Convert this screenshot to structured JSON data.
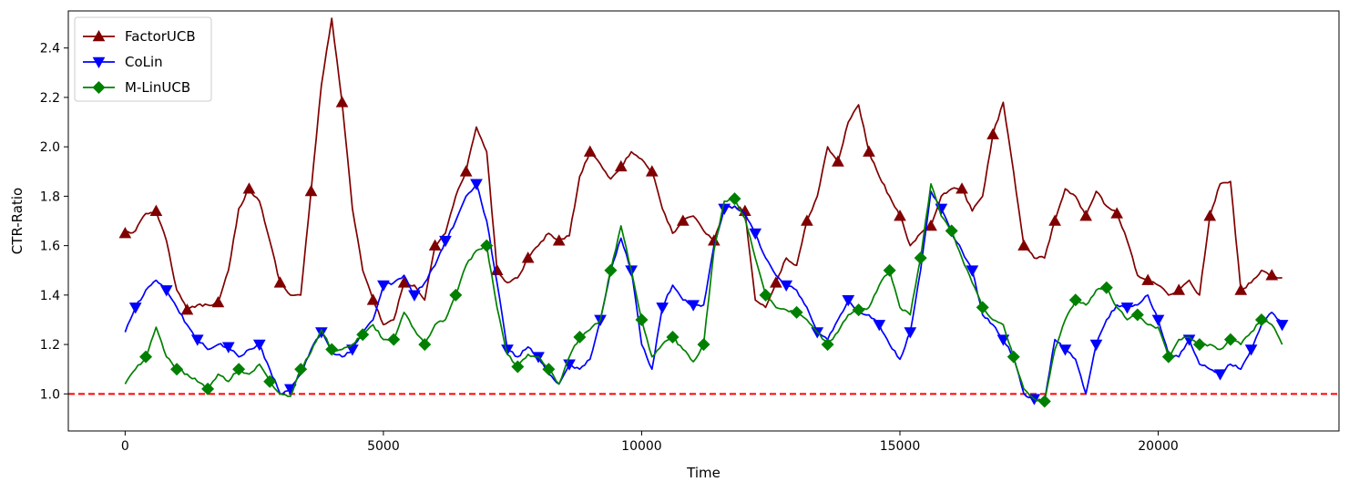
{
  "chart_data": {
    "type": "line",
    "xlabel": "Time",
    "ylabel": "CTR-Ratio",
    "xlim": [
      -1100,
      23500
    ],
    "ylim": [
      0.85,
      2.55
    ],
    "x_ticks": [
      0,
      5000,
      10000,
      15000,
      20000
    ],
    "y_ticks": [
      1.0,
      1.2,
      1.4,
      1.6,
      1.8,
      2.0,
      2.2,
      2.4
    ],
    "x_tick_labels": [
      "0",
      "5000",
      "10000",
      "15000",
      "20000"
    ],
    "y_tick_labels": [
      "1.0",
      "1.2",
      "1.4",
      "1.6",
      "1.8",
      "2.0",
      "2.2",
      "2.4"
    ],
    "legend_position": "top-left",
    "reference_line": {
      "y": 1.0,
      "color": "#ff0000",
      "style": "dashed"
    },
    "series": [
      {
        "name": "FactorUCB",
        "color": "#800000",
        "marker": "triangle-up",
        "x": [
          0,
          200,
          400,
          600,
          800,
          1000,
          1200,
          1400,
          1600,
          1800,
          2000,
          2200,
          2400,
          2600,
          2800,
          3000,
          3200,
          3400,
          3600,
          3800,
          4000,
          4200,
          4400,
          4600,
          4800,
          5000,
          5200,
          5400,
          5600,
          5800,
          6000,
          6200,
          6400,
          6600,
          6800,
          7000,
          7200,
          7400,
          7600,
          7800,
          8000,
          8200,
          8400,
          8600,
          8800,
          9000,
          9200,
          9400,
          9600,
          9800,
          10000,
          10200,
          10400,
          10600,
          10800,
          11000,
          11200,
          11400,
          11600,
          11800,
          12000,
          12200,
          12400,
          12600,
          12800,
          13000,
          13200,
          13400,
          13600,
          13800,
          14000,
          14200,
          14400,
          14600,
          14800,
          15000,
          15200,
          15400,
          15600,
          15800,
          16000,
          16200,
          16400,
          16600,
          16800,
          17000,
          17200,
          17400,
          17600,
          17800,
          18000,
          18200,
          18400,
          18600,
          18800,
          19000,
          19200,
          19400,
          19600,
          19800,
          20000,
          20200,
          20400,
          20600,
          20800,
          21000,
          21200,
          21400,
          21600,
          21800,
          22000,
          22200,
          22400
        ],
        "values": [
          1.65,
          1.66,
          1.73,
          1.74,
          1.62,
          1.42,
          1.34,
          1.36,
          1.36,
          1.37,
          1.5,
          1.75,
          1.83,
          1.78,
          1.62,
          1.45,
          1.4,
          1.4,
          1.82,
          2.25,
          2.52,
          2.18,
          1.75,
          1.5,
          1.38,
          1.28,
          1.3,
          1.45,
          1.44,
          1.38,
          1.6,
          1.65,
          1.8,
          1.9,
          2.08,
          1.98,
          1.5,
          1.45,
          1.47,
          1.55,
          1.6,
          1.65,
          1.62,
          1.64,
          1.88,
          1.98,
          1.93,
          1.87,
          1.92,
          1.98,
          1.95,
          1.9,
          1.75,
          1.65,
          1.7,
          1.72,
          1.66,
          1.62,
          1.75,
          1.76,
          1.74,
          1.38,
          1.35,
          1.45,
          1.55,
          1.52,
          1.7,
          1.8,
          2.0,
          1.94,
          2.1,
          2.17,
          1.98,
          1.88,
          1.8,
          1.72,
          1.6,
          1.65,
          1.68,
          1.8,
          1.83,
          1.83,
          1.74,
          1.8,
          2.05,
          2.18,
          1.9,
          1.6,
          1.55,
          1.55,
          1.7,
          1.83,
          1.8,
          1.72,
          1.82,
          1.76,
          1.73,
          1.62,
          1.48,
          1.46,
          1.44,
          1.4,
          1.42,
          1.46,
          1.4,
          1.72,
          1.85,
          1.86,
          1.42,
          1.45,
          1.5,
          1.48,
          1.47
        ]
      },
      {
        "name": "CoLin",
        "color": "#0000ff",
        "marker": "triangle-down",
        "x": [
          0,
          200,
          400,
          600,
          800,
          1000,
          1200,
          1400,
          1600,
          1800,
          2000,
          2200,
          2400,
          2600,
          2800,
          3000,
          3200,
          3400,
          3600,
          3800,
          4000,
          4200,
          4400,
          4600,
          4800,
          5000,
          5200,
          5400,
          5600,
          5800,
          6000,
          6200,
          6400,
          6600,
          6800,
          7000,
          7200,
          7400,
          7600,
          7800,
          8000,
          8200,
          8400,
          8600,
          8800,
          9000,
          9200,
          9400,
          9600,
          9800,
          10000,
          10200,
          10400,
          10600,
          10800,
          11000,
          11200,
          11400,
          11600,
          11800,
          12000,
          12200,
          12400,
          12600,
          12800,
          13000,
          13200,
          13400,
          13600,
          13800,
          14000,
          14200,
          14400,
          14600,
          14800,
          15000,
          15200,
          15400,
          15600,
          15800,
          16000,
          16200,
          16400,
          16600,
          16800,
          17000,
          17200,
          17400,
          17600,
          17800,
          18000,
          18200,
          18400,
          18600,
          18800,
          19000,
          19200,
          19400,
          19600,
          19800,
          20000,
          20200,
          20400,
          20600,
          20800,
          21000,
          21200,
          21400,
          21600,
          21800,
          22000,
          22200,
          22400
        ],
        "values": [
          1.25,
          1.35,
          1.42,
          1.46,
          1.42,
          1.35,
          1.28,
          1.22,
          1.18,
          1.2,
          1.19,
          1.15,
          1.18,
          1.2,
          1.1,
          1.0,
          1.02,
          1.08,
          1.18,
          1.25,
          1.17,
          1.15,
          1.18,
          1.25,
          1.3,
          1.44,
          1.45,
          1.48,
          1.4,
          1.45,
          1.52,
          1.62,
          1.7,
          1.8,
          1.85,
          1.7,
          1.45,
          1.18,
          1.15,
          1.19,
          1.15,
          1.08,
          1.04,
          1.12,
          1.1,
          1.14,
          1.3,
          1.5,
          1.63,
          1.5,
          1.2,
          1.1,
          1.35,
          1.44,
          1.38,
          1.36,
          1.36,
          1.6,
          1.75,
          1.76,
          1.73,
          1.65,
          1.55,
          1.48,
          1.44,
          1.42,
          1.35,
          1.25,
          1.22,
          1.3,
          1.38,
          1.33,
          1.32,
          1.28,
          1.2,
          1.14,
          1.25,
          1.5,
          1.82,
          1.75,
          1.65,
          1.58,
          1.5,
          1.32,
          1.28,
          1.22,
          1.15,
          1.0,
          0.98,
          0.97,
          1.22,
          1.18,
          1.14,
          1.0,
          1.2,
          1.3,
          1.36,
          1.35,
          1.36,
          1.4,
          1.3,
          1.16,
          1.15,
          1.22,
          1.12,
          1.1,
          1.08,
          1.12,
          1.1,
          1.18,
          1.28,
          1.33,
          1.28
        ]
      },
      {
        "name": "M-LinUCB",
        "color": "#008000",
        "marker": "diamond",
        "x": [
          0,
          200,
          400,
          600,
          800,
          1000,
          1200,
          1400,
          1600,
          1800,
          2000,
          2200,
          2400,
          2600,
          2800,
          3000,
          3200,
          3400,
          3600,
          3800,
          4000,
          4200,
          4400,
          4600,
          4800,
          5000,
          5200,
          5400,
          5600,
          5800,
          6000,
          6200,
          6400,
          6600,
          6800,
          7000,
          7200,
          7400,
          7600,
          7800,
          8000,
          8200,
          8400,
          8600,
          8800,
          9000,
          9200,
          9400,
          9600,
          9800,
          10000,
          10200,
          10400,
          10600,
          10800,
          11000,
          11200,
          11400,
          11600,
          11800,
          12000,
          12200,
          12400,
          12600,
          12800,
          13000,
          13200,
          13400,
          13600,
          13800,
          14000,
          14200,
          14400,
          14600,
          14800,
          15000,
          15200,
          15400,
          15600,
          15800,
          16000,
          16200,
          16400,
          16600,
          16800,
          17000,
          17200,
          17400,
          17600,
          17800,
          18000,
          18200,
          18400,
          18600,
          18800,
          19000,
          19200,
          19400,
          19600,
          19800,
          20000,
          20200,
          20400,
          20600,
          20800,
          21000,
          21200,
          21400,
          21600,
          21800,
          22000,
          22200,
          22400
        ],
        "values": [
          1.04,
          1.1,
          1.15,
          1.27,
          1.15,
          1.1,
          1.08,
          1.05,
          1.02,
          1.08,
          1.05,
          1.1,
          1.08,
          1.12,
          1.05,
          1.0,
          0.99,
          1.1,
          1.17,
          1.26,
          1.18,
          1.18,
          1.2,
          1.24,
          1.28,
          1.22,
          1.22,
          1.33,
          1.26,
          1.2,
          1.28,
          1.3,
          1.4,
          1.52,
          1.58,
          1.6,
          1.35,
          1.16,
          1.11,
          1.16,
          1.15,
          1.1,
          1.04,
          1.15,
          1.23,
          1.26,
          1.3,
          1.5,
          1.68,
          1.5,
          1.3,
          1.15,
          1.2,
          1.23,
          1.18,
          1.13,
          1.2,
          1.58,
          1.78,
          1.79,
          1.71,
          1.55,
          1.4,
          1.35,
          1.34,
          1.33,
          1.3,
          1.25,
          1.2,
          1.25,
          1.32,
          1.34,
          1.35,
          1.44,
          1.5,
          1.35,
          1.32,
          1.55,
          1.85,
          1.72,
          1.66,
          1.55,
          1.45,
          1.35,
          1.3,
          1.28,
          1.15,
          1.02,
          0.98,
          0.97,
          1.18,
          1.3,
          1.38,
          1.36,
          1.42,
          1.43,
          1.35,
          1.3,
          1.32,
          1.28,
          1.27,
          1.15,
          1.22,
          1.23,
          1.2,
          1.2,
          1.18,
          1.22,
          1.2,
          1.25,
          1.3,
          1.28,
          1.2
        ]
      }
    ]
  }
}
